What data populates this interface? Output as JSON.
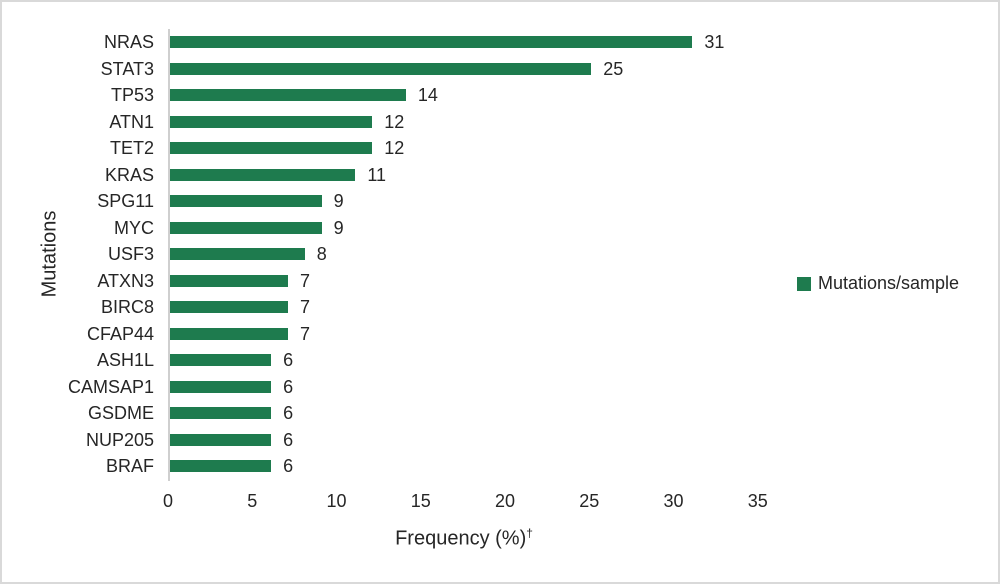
{
  "figure": {
    "background": "#FFFFFF",
    "border_color": "#D9D9D9",
    "text_color": "#262626",
    "axis_line_color": "#CFCFCF"
  },
  "chart_data": {
    "type": "bar",
    "orientation": "horizontal",
    "title": "",
    "xlabel": "Frequency (%)†",
    "xlabel_base": "Frequency (%)",
    "xlabel_sup": "†",
    "ylabel": "Mutations",
    "categories": [
      "NRAS",
      "STAT3",
      "TP53",
      "ATN1",
      "TET2",
      "KRAS",
      "SPG11",
      "MYC",
      "USF3",
      "ATXN3",
      "BIRC8",
      "CFAP44",
      "ASH1L",
      "CAMSAP1",
      "GSDME",
      "NUP205",
      "BRAF"
    ],
    "series": [
      {
        "name": "Mutations/sample",
        "values": [
          31,
          25,
          14,
          12,
          12,
          11,
          9,
          9,
          8,
          7,
          7,
          7,
          6,
          6,
          6,
          6,
          6
        ],
        "color": "#1E7B4E"
      }
    ],
    "data_labels": [
      31,
      25,
      14,
      12,
      12,
      11,
      9,
      9,
      8,
      7,
      7,
      7,
      6,
      6,
      6,
      6,
      6
    ],
    "xticks": [
      0,
      5,
      10,
      15,
      20,
      25,
      30,
      35
    ],
    "xlim": [
      0,
      35
    ],
    "grid": false,
    "legend_position": "right",
    "legend_label": "Mutations/sample"
  }
}
